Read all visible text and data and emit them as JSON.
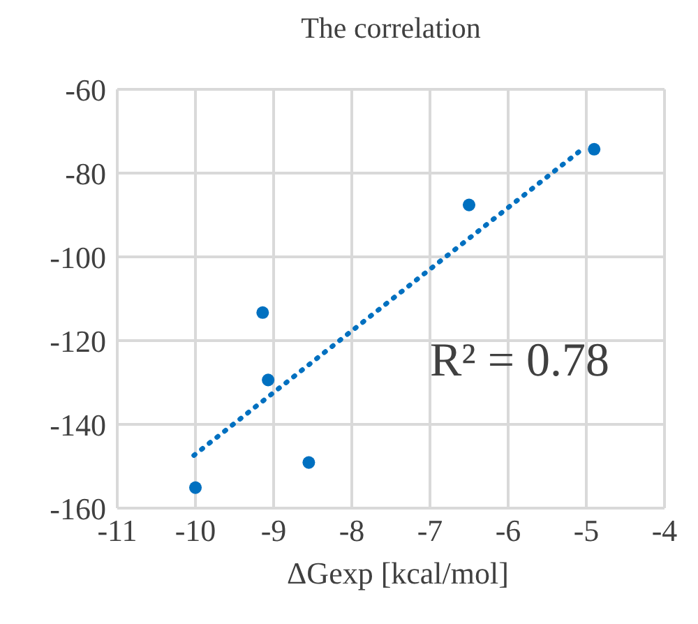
{
  "chart_data": {
    "type": "scatter",
    "title": "The correlation",
    "xlabel": "ΔGexp [kcal/mol]",
    "x": [
      -10.0,
      -9.14,
      -9.07,
      -8.55,
      -6.5,
      -4.9
    ],
    "series": [
      {
        "color": "#0070c0",
        "values": [
          -155.1,
          -113.3,
          -129.4,
          -149.1,
          -87.6,
          -74.3
        ],
        "marker": "circle"
      },
      {
        "type": "line",
        "color": "#0070c0",
        "x": [
          -10.02,
          -5.08
        ],
        "values": [
          -147.4,
          -74.7
        ],
        "line_style": "dotted",
        "marker": "none"
      }
    ],
    "xlim": [
      -11,
      -4
    ],
    "xticks": [
      -11,
      -10,
      -9,
      -8,
      -7,
      -6,
      -5,
      -4
    ],
    "ylim": [
      -160,
      -60
    ],
    "yticks": [
      -160,
      -140,
      -120,
      -100,
      -80,
      -60
    ],
    "grid": true,
    "legend": false,
    "annotations": [
      "R² = 0.78"
    ]
  }
}
